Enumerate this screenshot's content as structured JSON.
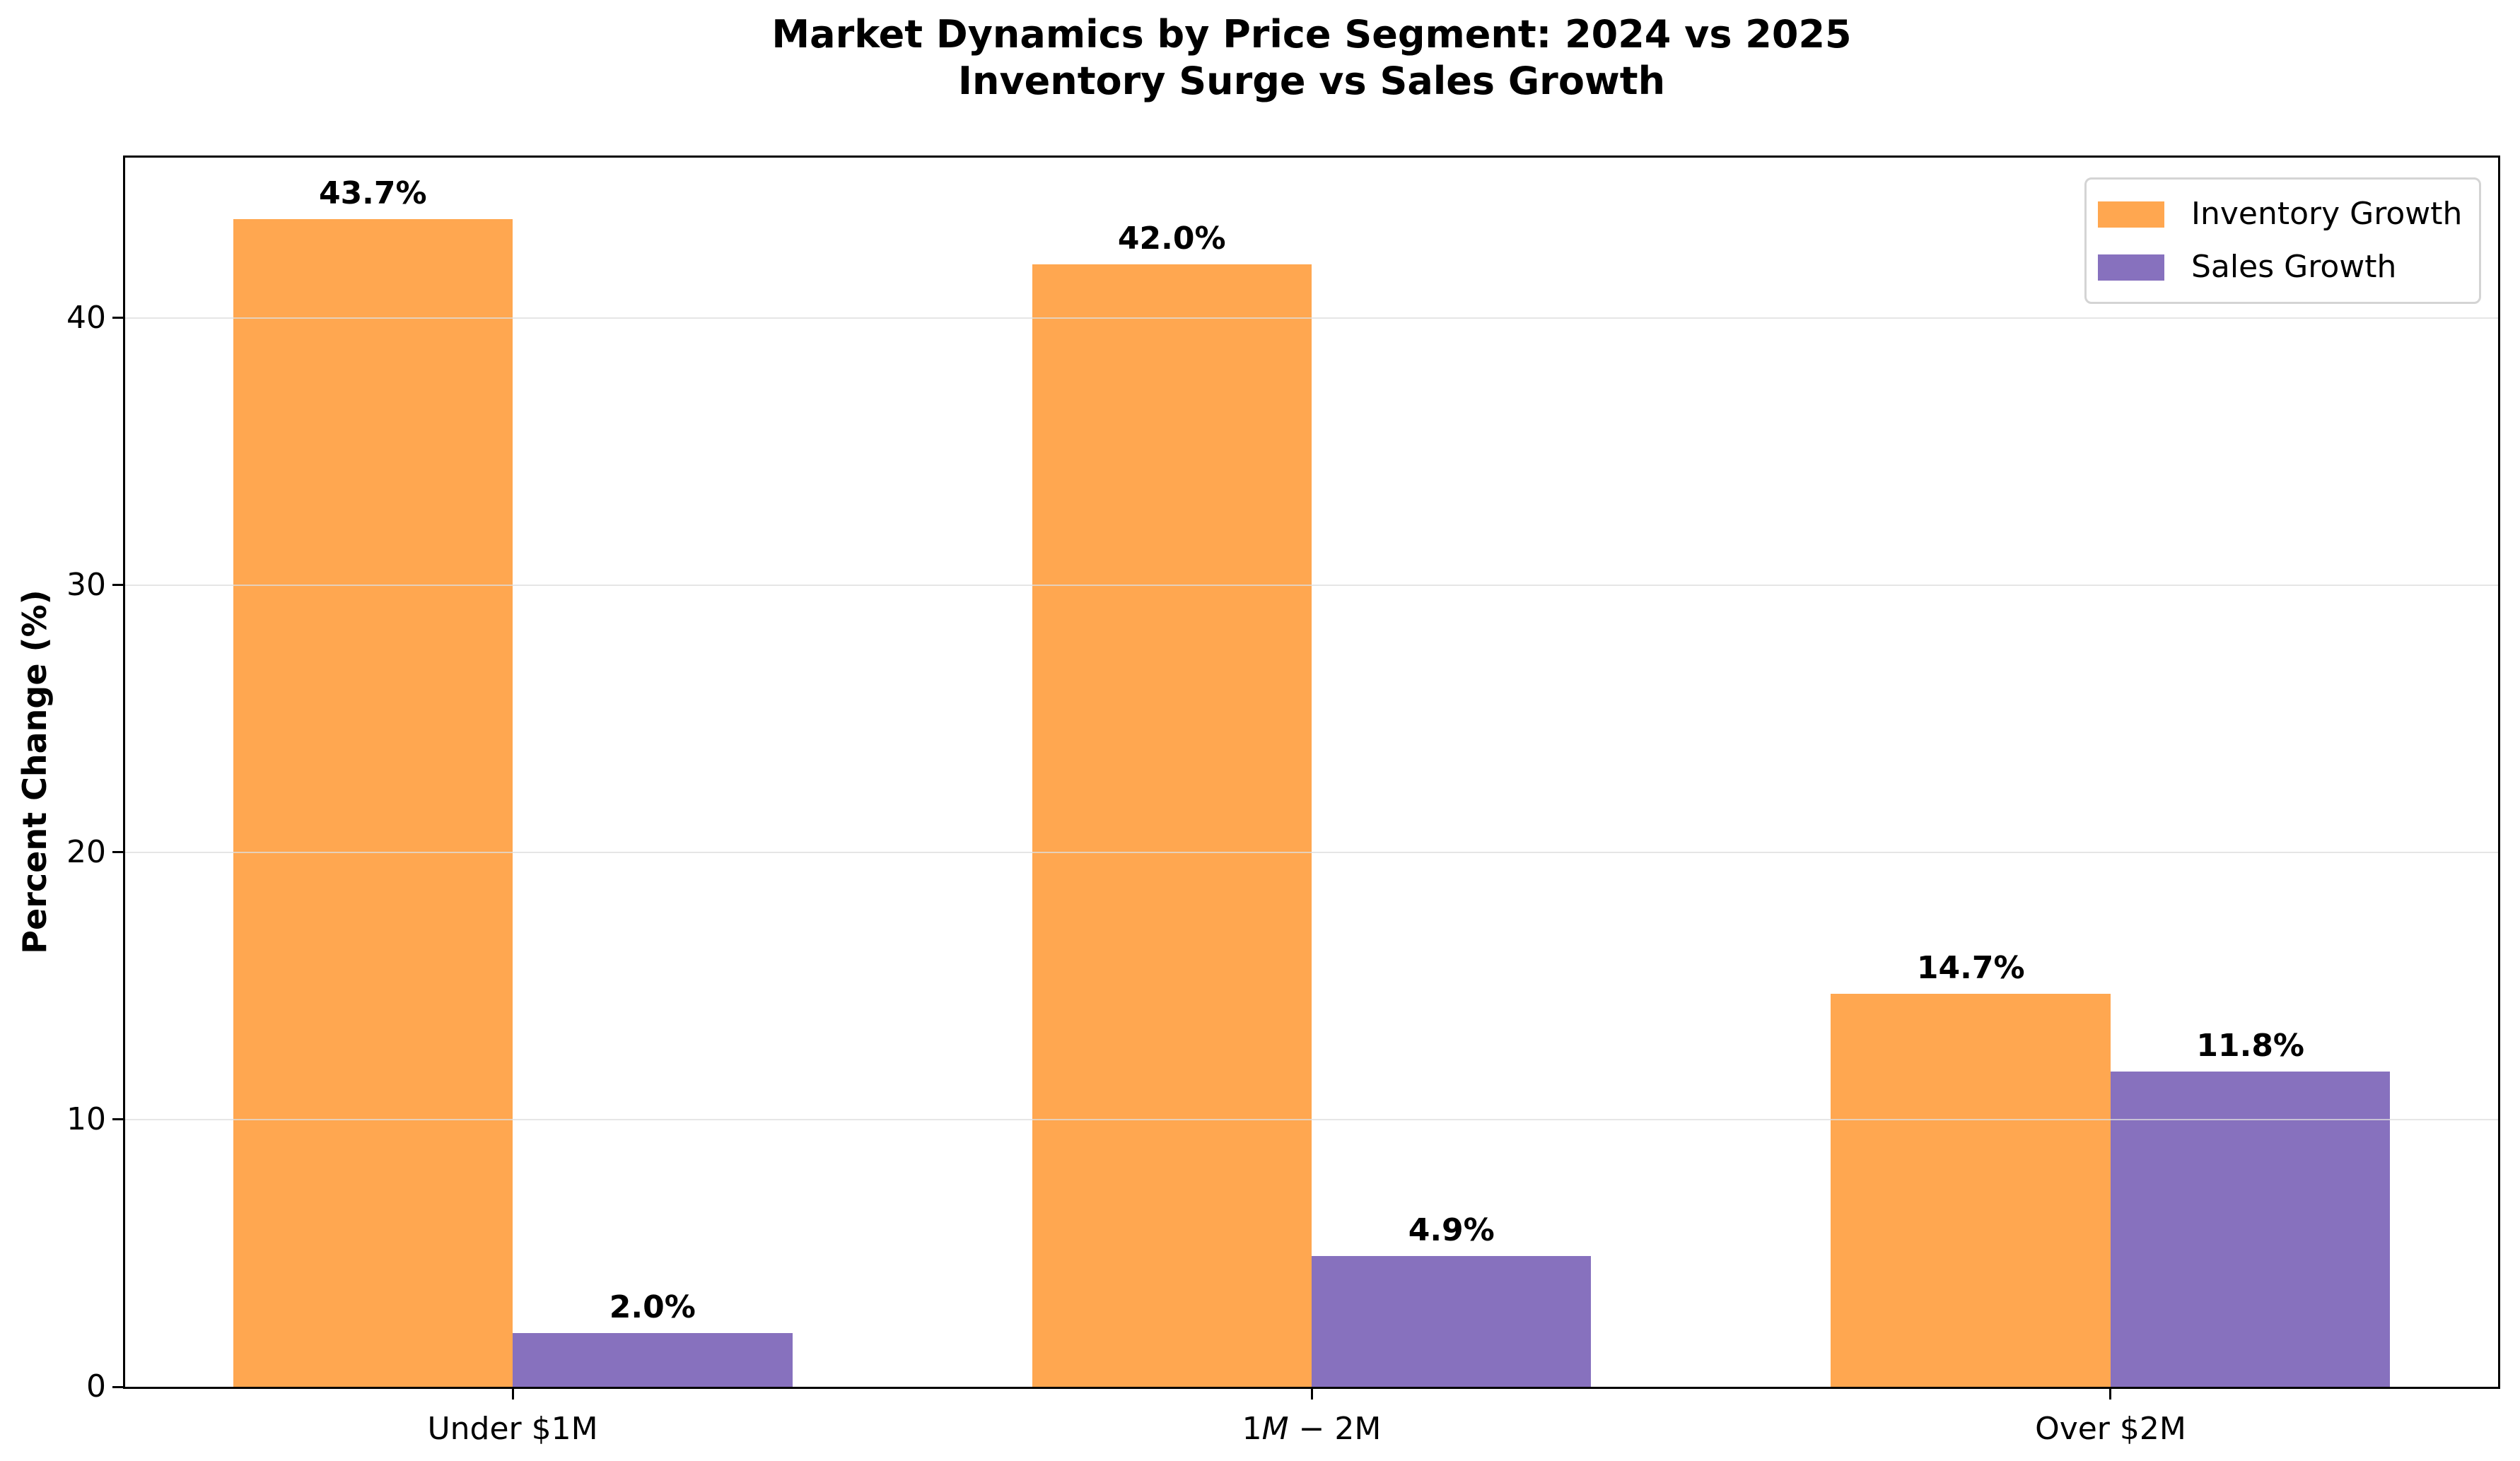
{
  "title": {
    "line1": "Market Dynamics by Price Segment: 2024 vs 2025",
    "line2": "Inventory Surge vs Sales Growth"
  },
  "chart_data": {
    "type": "bar",
    "title": "Market Dynamics by Price Segment: 2024 vs 2025",
    "subtitle": "Inventory Surge vs Sales Growth",
    "xlabel": "",
    "ylabel": "Percent Change (%)",
    "ylim": [
      0,
      46
    ],
    "grid": true,
    "grid_color": "#dedede",
    "legend_position": "upper right",
    "categories": [
      "Under $1M",
      "1M − 2M",
      "Over $2M"
    ],
    "categories_rich": [
      [
        {
          "t": "Under $1M",
          "i": false
        }
      ],
      [
        {
          "t": "1",
          "i": false
        },
        {
          "t": "M",
          "i": true
        },
        {
          "t": " − 2M",
          "i": false
        }
      ],
      [
        {
          "t": "Over $2M",
          "i": false
        }
      ]
    ],
    "yticks": [
      {
        "value": 0,
        "label": "0"
      },
      {
        "value": 10,
        "label": "10"
      },
      {
        "value": 20,
        "label": "20"
      },
      {
        "value": 30,
        "label": "30"
      },
      {
        "value": 40,
        "label": "40"
      }
    ],
    "series": [
      {
        "name": "Inventory Growth",
        "color": "#FFA750",
        "values": [
          43.7,
          42.0,
          14.7
        ],
        "labels": [
          "43.7%",
          "42.0%",
          "14.7%"
        ]
      },
      {
        "name": "Sales Growth",
        "color": "#8771BE",
        "values": [
          2.0,
          4.9,
          11.8
        ],
        "labels": [
          "2.0%",
          "4.9%",
          "11.8%"
        ]
      }
    ]
  }
}
